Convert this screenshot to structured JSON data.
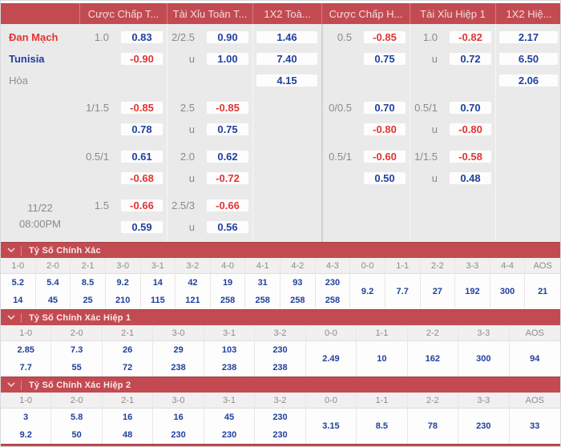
{
  "colors": {
    "bar_red": "#c24b52",
    "odds_blue": "#21409e",
    "odds_red": "#e23434",
    "badge_bg": "#fdfdfd",
    "body_bg": "#eaeaea"
  },
  "icons": {
    "section_collapse": "chevron-down"
  },
  "odds_header": {
    "columns": [
      "Cược Chấp T...",
      "Tài Xỉu Toàn T...",
      "1X2 Toà...",
      "Cược Chấp H...",
      "Tài Xỉu Hiệp 1",
      "1X2 Hiệ..."
    ]
  },
  "match": {
    "home": "Đan Mạch",
    "away": "Tunisia",
    "draw_label": "Hòa",
    "date": "11/22",
    "time": "08:00PM"
  },
  "odds": {
    "groups": [
      {
        "rows": [
          {
            "cells": [
              {
                "t": "Đan Mạch",
                "s": "home"
              },
              {
                "t": "1.0",
                "s": "line"
              },
              {
                "t": "0.83",
                "s": "bb"
              },
              {
                "t": "2/2.5",
                "s": "line"
              },
              {
                "t": "0.90",
                "s": "bb"
              },
              {
                "t": "1.46",
                "s": "vb"
              },
              {
                "t": "0.5",
                "s": "line"
              },
              {
                "t": "-0.85",
                "s": "br"
              },
              {
                "t": "1.0",
                "s": "line"
              },
              {
                "t": "-0.82",
                "s": "br"
              },
              {
                "t": "2.17",
                "s": "vb"
              }
            ]
          },
          {
            "cells": [
              {
                "t": "Tunisia",
                "s": "away"
              },
              {},
              {
                "t": "-0.90",
                "s": "br"
              },
              {
                "t": "u",
                "s": "line"
              },
              {
                "t": "1.00",
                "s": "bb"
              },
              {
                "t": "7.40",
                "s": "vb"
              },
              {},
              {
                "t": "0.75",
                "s": "bb"
              },
              {
                "t": "u",
                "s": "line"
              },
              {
                "t": "0.72",
                "s": "bb"
              },
              {
                "t": "6.50",
                "s": "vb"
              }
            ]
          },
          {
            "cells": [
              {
                "t": "Hòa",
                "s": "draw"
              },
              {},
              {},
              {},
              {},
              {
                "t": "4.15",
                "s": "vb"
              },
              {},
              {},
              {},
              {},
              {
                "t": "2.06",
                "s": "vb"
              }
            ]
          }
        ]
      },
      {
        "rows": [
          {
            "cells": [
              {},
              {
                "t": "1/1.5",
                "s": "line"
              },
              {
                "t": "-0.85",
                "s": "br"
              },
              {
                "t": "2.5",
                "s": "line"
              },
              {
                "t": "-0.85",
                "s": "br"
              },
              {},
              {
                "t": "0/0.5",
                "s": "line"
              },
              {
                "t": "0.70",
                "s": "bb"
              },
              {
                "t": "0.5/1",
                "s": "line"
              },
              {
                "t": "0.70",
                "s": "bb"
              },
              {}
            ]
          },
          {
            "cells": [
              {},
              {},
              {
                "t": "0.78",
                "s": "bb"
              },
              {
                "t": "u",
                "s": "line"
              },
              {
                "t": "0.75",
                "s": "bb"
              },
              {},
              {},
              {
                "t": "-0.80",
                "s": "br"
              },
              {
                "t": "u",
                "s": "line"
              },
              {
                "t": "-0.80",
                "s": "br"
              },
              {}
            ]
          }
        ]
      },
      {
        "rows": [
          {
            "cells": [
              {},
              {
                "t": "0.5/1",
                "s": "line"
              },
              {
                "t": "0.61",
                "s": "bb"
              },
              {
                "t": "2.0",
                "s": "line"
              },
              {
                "t": "0.62",
                "s": "bb"
              },
              {},
              {
                "t": "0.5/1",
                "s": "line"
              },
              {
                "t": "-0.60",
                "s": "br"
              },
              {
                "t": "1/1.5",
                "s": "line"
              },
              {
                "t": "-0.58",
                "s": "br"
              },
              {}
            ]
          },
          {
            "cells": [
              {},
              {},
              {
                "t": "-0.68",
                "s": "br"
              },
              {
                "t": "u",
                "s": "line"
              },
              {
                "t": "-0.72",
                "s": "br"
              },
              {},
              {},
              {
                "t": "0.50",
                "s": "bb"
              },
              {
                "t": "u",
                "s": "line"
              },
              {
                "t": "0.48",
                "s": "bb"
              },
              {}
            ]
          }
        ]
      },
      {
        "rows": [
          {
            "cells": [
              {
                "t": "11/22\n08:00PM",
                "s": "date",
                "rs": 2
              },
              {
                "t": "1.5",
                "s": "line"
              },
              {
                "t": "-0.66",
                "s": "br"
              },
              {
                "t": "2.5/3",
                "s": "line"
              },
              {
                "t": "-0.66",
                "s": "br"
              },
              {},
              {},
              {},
              {},
              {},
              {}
            ]
          },
          {
            "cells": [
              {},
              {
                "t": "0.59",
                "s": "bb"
              },
              {
                "t": "u",
                "s": "line"
              },
              {
                "t": "0.56",
                "s": "bb"
              },
              {},
              {},
              {},
              {},
              {},
              {}
            ]
          }
        ]
      }
    ]
  },
  "score_sections": [
    {
      "title": "Tỷ Số Chính Xác",
      "columns": [
        {
          "label": "1-0",
          "values": [
            "5.2",
            "14"
          ]
        },
        {
          "label": "2-0",
          "values": [
            "5.4",
            "45"
          ]
        },
        {
          "label": "2-1",
          "values": [
            "8.5",
            "25"
          ]
        },
        {
          "label": "3-0",
          "values": [
            "9.2",
            "210"
          ]
        },
        {
          "label": "3-1",
          "values": [
            "14",
            "115"
          ]
        },
        {
          "label": "3-2",
          "values": [
            "42",
            "121"
          ]
        },
        {
          "label": "4-0",
          "values": [
            "19",
            "258"
          ]
        },
        {
          "label": "4-1",
          "values": [
            "31",
            "258"
          ]
        },
        {
          "label": "4-2",
          "values": [
            "93",
            "258"
          ]
        },
        {
          "label": "4-3",
          "values": [
            "230",
            "258"
          ]
        },
        {
          "label": "0-0",
          "values": [
            "9.2"
          ]
        },
        {
          "label": "1-1",
          "values": [
            "7.7"
          ]
        },
        {
          "label": "2-2",
          "values": [
            "27"
          ]
        },
        {
          "label": "3-3",
          "values": [
            "192"
          ]
        },
        {
          "label": "4-4",
          "values": [
            "300"
          ]
        },
        {
          "label": "AOS",
          "values": [
            "21"
          ]
        }
      ]
    },
    {
      "title": "Tỷ Số Chính Xác Hiệp 1",
      "columns": [
        {
          "label": "1-0",
          "values": [
            "2.85",
            "7.7"
          ]
        },
        {
          "label": "2-0",
          "values": [
            "7.3",
            "55"
          ]
        },
        {
          "label": "2-1",
          "values": [
            "26",
            "72"
          ]
        },
        {
          "label": "3-0",
          "values": [
            "29",
            "238"
          ]
        },
        {
          "label": "3-1",
          "values": [
            "103",
            "238"
          ]
        },
        {
          "label": "3-2",
          "values": [
            "230",
            "238"
          ]
        },
        {
          "label": "0-0",
          "values": [
            "2.49"
          ]
        },
        {
          "label": "1-1",
          "values": [
            "10"
          ]
        },
        {
          "label": "2-2",
          "values": [
            "162"
          ]
        },
        {
          "label": "3-3",
          "values": [
            "300"
          ]
        },
        {
          "label": "AOS",
          "values": [
            "94"
          ]
        }
      ]
    },
    {
      "title": "Tỷ Số Chính Xác Hiệp 2",
      "columns": [
        {
          "label": "1-0",
          "values": [
            "3",
            "9.2"
          ]
        },
        {
          "label": "2-0",
          "values": [
            "5.8",
            "50"
          ]
        },
        {
          "label": "2-1",
          "values": [
            "16",
            "48"
          ]
        },
        {
          "label": "3-0",
          "values": [
            "16",
            "230"
          ]
        },
        {
          "label": "3-1",
          "values": [
            "45",
            "230"
          ]
        },
        {
          "label": "3-2",
          "values": [
            "230",
            "230"
          ]
        },
        {
          "label": "0-0",
          "values": [
            "3.15"
          ]
        },
        {
          "label": "1-1",
          "values": [
            "8.5"
          ]
        },
        {
          "label": "2-2",
          "values": [
            "78"
          ]
        },
        {
          "label": "3-3",
          "values": [
            "230"
          ]
        },
        {
          "label": "AOS",
          "values": [
            "33"
          ]
        }
      ]
    }
  ]
}
